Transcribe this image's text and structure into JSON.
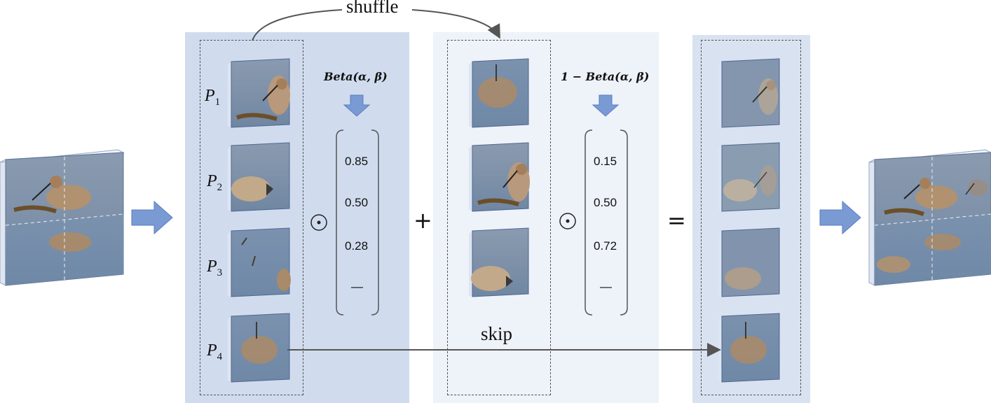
{
  "diagram": {
    "shuffle_label": "shuffle",
    "skip_label": "skip",
    "patch_labels": [
      {
        "letter": "P",
        "index": "1"
      },
      {
        "letter": "P",
        "index": "2"
      },
      {
        "letter": "P",
        "index": "3"
      },
      {
        "letter": "P",
        "index": "4"
      }
    ],
    "beta_label": "Beta(α, β)",
    "one_minus_beta_label": "1 − Beta(α, β)",
    "weights_left": [
      "0.85",
      "0.50",
      "0.28",
      "—"
    ],
    "weights_right": [
      "0.15",
      "0.50",
      "0.72",
      "—"
    ],
    "operators": {
      "hadamard": "⊙",
      "plus": "+",
      "equals": "="
    },
    "colors": {
      "panel_dark": "#d0dcee",
      "panel_light": "#eef2f9",
      "arrow_fill": "#7a9ad4",
      "arrow_stroke": "#5a7cc0",
      "connector": "#555555"
    }
  }
}
